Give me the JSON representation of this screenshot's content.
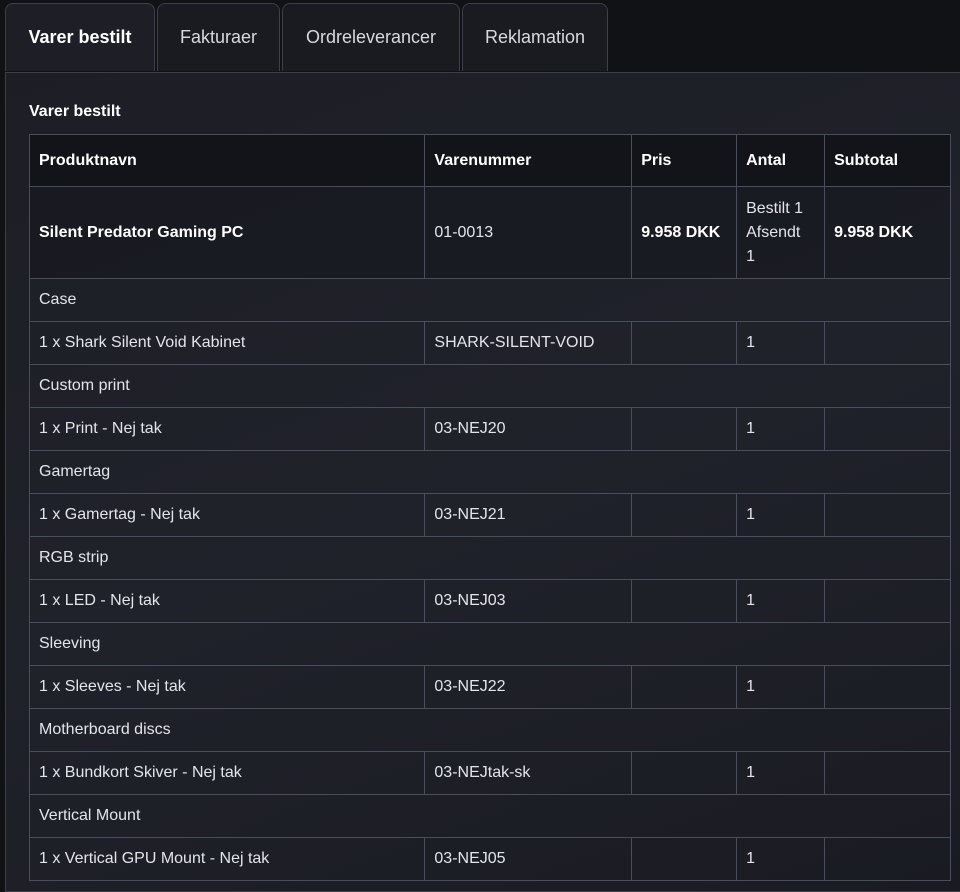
{
  "tabs": [
    "Varer bestilt",
    "Fakturaer",
    "Ordreleverancer",
    "Reklamation"
  ],
  "section_title": "Varer bestilt",
  "table": {
    "headers": [
      "Produktnavn",
      "Varenummer",
      "Pris",
      "Antal",
      "Subtotal"
    ],
    "main": {
      "name": "Silent Predator Gaming PC",
      "sku": "01-0013",
      "price": "9.958 DKK",
      "ordered": "Bestilt 1",
      "shipped_label": "Afsendt",
      "shipped": "1",
      "subtotal": "9.958 DKK"
    },
    "groups": [
      {
        "label": "Case",
        "item": "1 x Shark Silent Void Kabinet",
        "sku": "SHARK-SILENT-VOID",
        "qty": "1"
      },
      {
        "label": "Custom print",
        "item": "1 x Print - Nej tak",
        "sku": "03-NEJ20",
        "qty": "1"
      },
      {
        "label": "Gamertag",
        "item": "1 x Gamertag - Nej tak",
        "sku": "03-NEJ21",
        "qty": "1"
      },
      {
        "label": "RGB strip",
        "item": "1 x LED - Nej tak",
        "sku": "03-NEJ03",
        "qty": "1"
      },
      {
        "label": "Sleeving",
        "item": "1 x Sleeves - Nej tak",
        "sku": "03-NEJ22",
        "qty": "1"
      },
      {
        "label": "Motherboard discs",
        "item": "1 x Bundkort Skiver - Nej tak",
        "sku": "03-NEJtak-sk",
        "qty": "1"
      },
      {
        "label": "Vertical Mount",
        "item": "1 x Vertical GPU Mount - Nej tak",
        "sku": "03-NEJ05",
        "qty": "1"
      }
    ]
  }
}
